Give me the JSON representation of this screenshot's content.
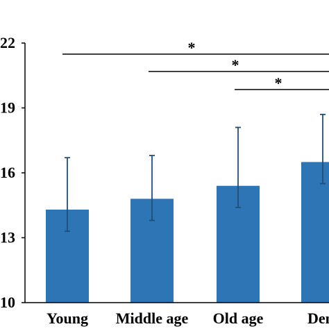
{
  "chart_data": {
    "type": "bar",
    "categories": [
      "Young",
      "Middle age",
      "Old age",
      "Dem"
    ],
    "series": [
      {
        "values": [
          14.3,
          14.8,
          15.4,
          16.5
        ],
        "error_lower": [
          13.3,
          13.8,
          14.4,
          15.5
        ],
        "error_upper": [
          16.7,
          16.8,
          18.1,
          18.7
        ]
      }
    ],
    "ylim": [
      10,
      22
    ],
    "yticks": [
      "10",
      "13",
      "16",
      "19",
      "22"
    ],
    "ytick_values": [
      10,
      13,
      16,
      19,
      22
    ],
    "bar_color": "#2e75b6",
    "error_color": "#1f4e79",
    "grid": false,
    "significance": [
      {
        "from": 0,
        "to": 3,
        "label": "*"
      },
      {
        "from": 1,
        "to": 3,
        "label": "*"
      },
      {
        "from": 2,
        "to": 3,
        "label": "*"
      }
    ]
  }
}
